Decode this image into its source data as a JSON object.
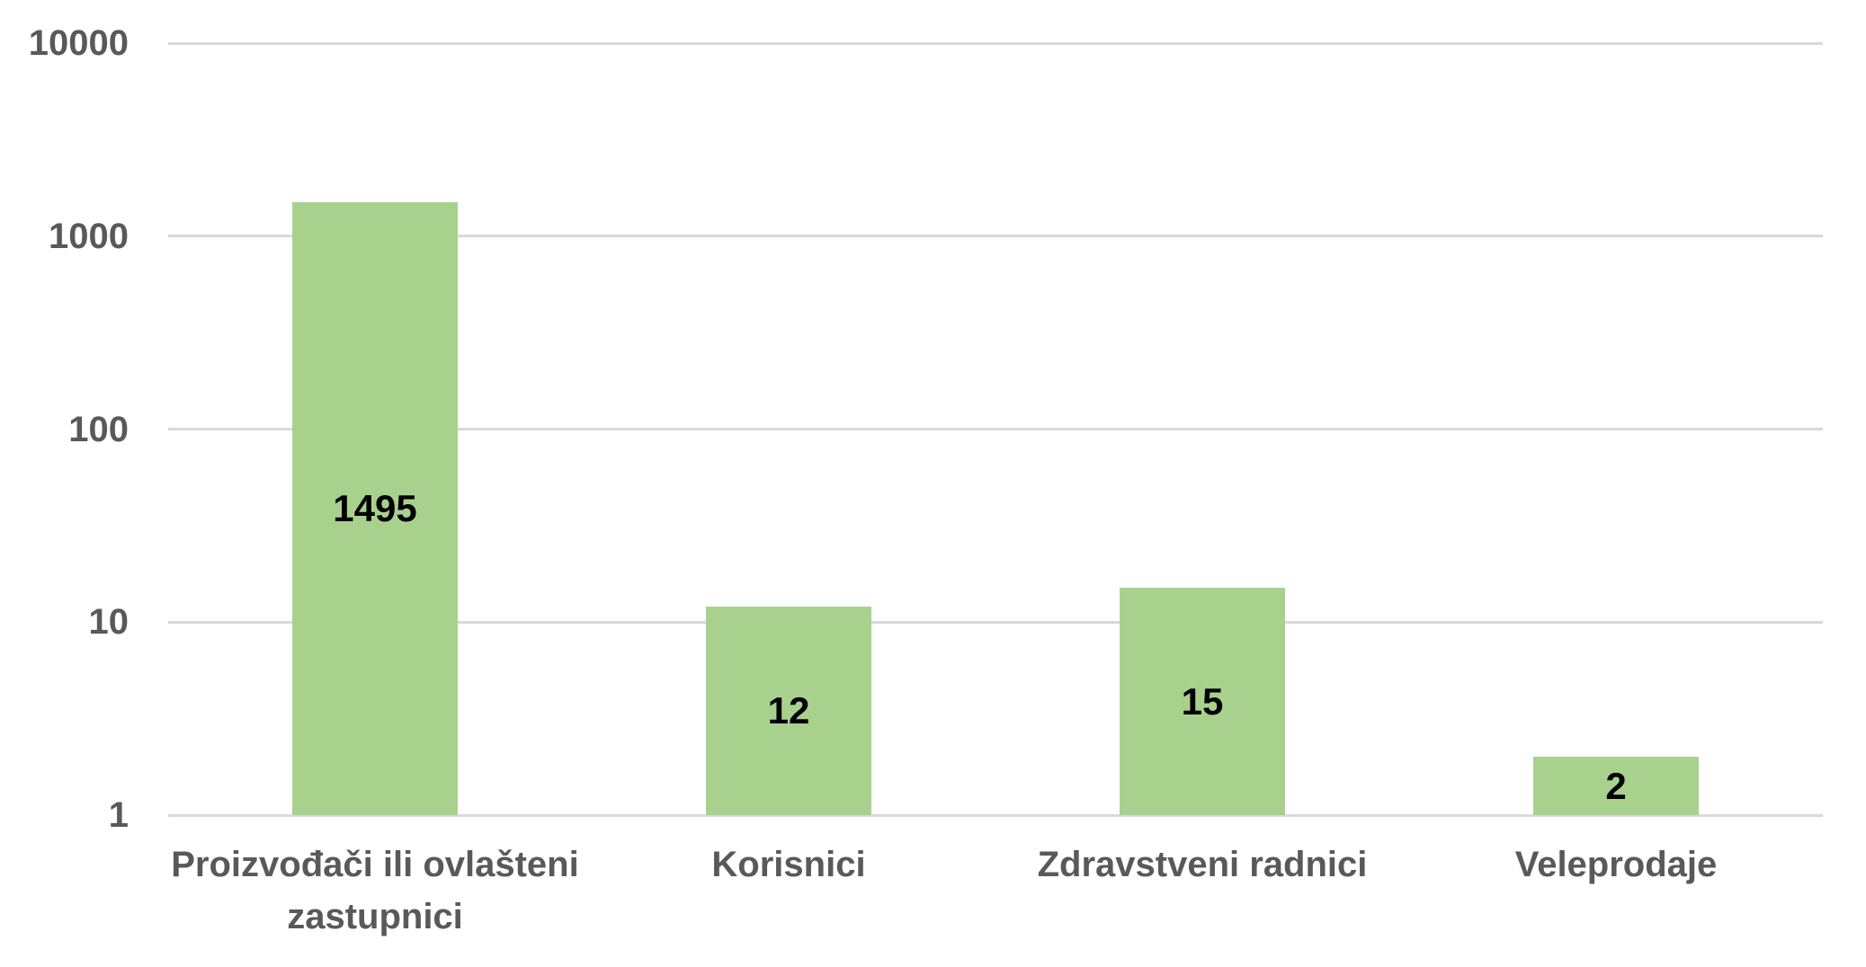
{
  "chart_data": {
    "type": "bar",
    "title": "",
    "xlabel": "",
    "ylabel": "",
    "scale": "log10",
    "categories": [
      "Proizvođači ili ovlašteni zastupnici",
      "Korisnici",
      "Zdravstveni radnici",
      "Veleprodaje"
    ],
    "values": [
      1495,
      12,
      15,
      2
    ],
    "data_labels": [
      "1495",
      "12",
      "15",
      "2"
    ],
    "ylim": [
      1,
      10000
    ],
    "y_ticks": [
      1,
      10,
      100,
      1000,
      10000
    ],
    "y_tick_labels": [
      "1",
      "10",
      "100",
      "1000",
      "10000"
    ],
    "grid": true,
    "legend": false,
    "colors": {
      "bar": "#A9D18E",
      "gridline": "#D9D9D9",
      "axis_text": "#595959",
      "data_label": "#000000",
      "background": "#FFFFFF"
    }
  }
}
